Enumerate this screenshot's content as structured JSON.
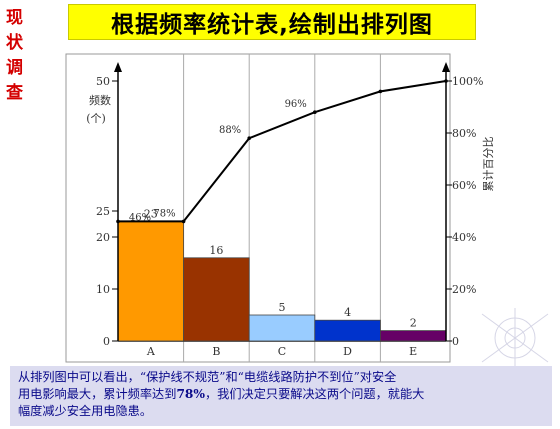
{
  "side_label": [
    "现",
    "状",
    "调",
    "查"
  ],
  "title": "根据频率统计表,绘制出排列图",
  "chart_data": {
    "type": "bar",
    "categories": [
      "A",
      "B",
      "C",
      "D",
      "E"
    ],
    "values": [
      23,
      16,
      5,
      4,
      2
    ],
    "cumulative_percent": [
      46,
      78,
      88,
      96,
      100
    ],
    "cumulative_labels": [
      "46%",
      "78%",
      "88%",
      "96%"
    ],
    "bar_colors": [
      "#ff9900",
      "#993300",
      "#99ccff",
      "#0033cc",
      "#660066"
    ],
    "ylabel": "频数",
    "yunit": "(个)",
    "y2label": "累计百分比",
    "ylim": [
      0,
      50
    ],
    "y2lim": [
      0,
      100
    ],
    "yticks": [
      "50",
      "25",
      "20",
      "10",
      "0"
    ],
    "y2ticks": [
      "100%",
      "80%",
      "60%",
      "40%",
      "20%",
      "0"
    ],
    "legend": "none",
    "grid": false
  },
  "note": {
    "line1": "从排列图中可以看出，“保护线不规范”和“电缆线路防护不到位”对安全",
    "line2_a": "用电影响最大，累计频率达到",
    "line2_b": "78%",
    "line2_c": "，我们决定只要解决这两个问题，就能大",
    "line3": "幅度减少安全用电隐患。"
  }
}
